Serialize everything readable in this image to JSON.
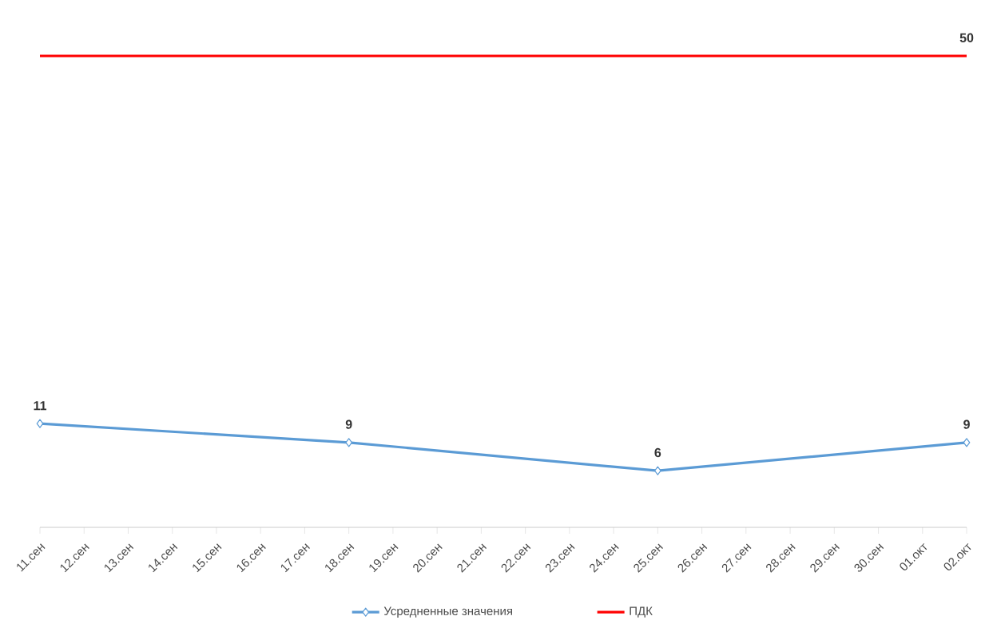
{
  "chart_data": {
    "type": "line",
    "categories": [
      "11.сен",
      "12.сен",
      "13.сен",
      "14.сен",
      "15.сен",
      "16.сен",
      "17.сен",
      "18.сен",
      "19.сен",
      "20.сен",
      "21.сен",
      "22.сен",
      "23.сен",
      "24.сен",
      "25.сен",
      "26.сен",
      "27.сен",
      "28.сен",
      "29.сен",
      "30.сен",
      "01.окт",
      "02.окт"
    ],
    "series": [
      {
        "name": "Усредненные значения",
        "color": "#5b9bd5",
        "marker": "diamond",
        "values": [
          11,
          null,
          null,
          null,
          null,
          null,
          null,
          9,
          null,
          null,
          null,
          null,
          null,
          null,
          6,
          null,
          null,
          null,
          null,
          null,
          null,
          9
        ],
        "value_labels": [
          "11",
          null,
          null,
          null,
          null,
          null,
          null,
          "9",
          null,
          null,
          null,
          null,
          null,
          null,
          "6",
          null,
          null,
          null,
          null,
          null,
          null,
          "9"
        ]
      },
      {
        "name": "ПДК",
        "color": "#ff0000",
        "marker": "none",
        "values": [
          50,
          50,
          50,
          50,
          50,
          50,
          50,
          50,
          50,
          50,
          50,
          50,
          50,
          50,
          50,
          50,
          50,
          50,
          50,
          50,
          50,
          50
        ],
        "value_labels": [
          null,
          null,
          null,
          null,
          null,
          null,
          null,
          null,
          null,
          null,
          null,
          null,
          null,
          null,
          null,
          null,
          null,
          null,
          null,
          null,
          null,
          "50"
        ]
      }
    ],
    "ylim": [
      0,
      50
    ],
    "grid": false,
    "legend": "bottom"
  }
}
